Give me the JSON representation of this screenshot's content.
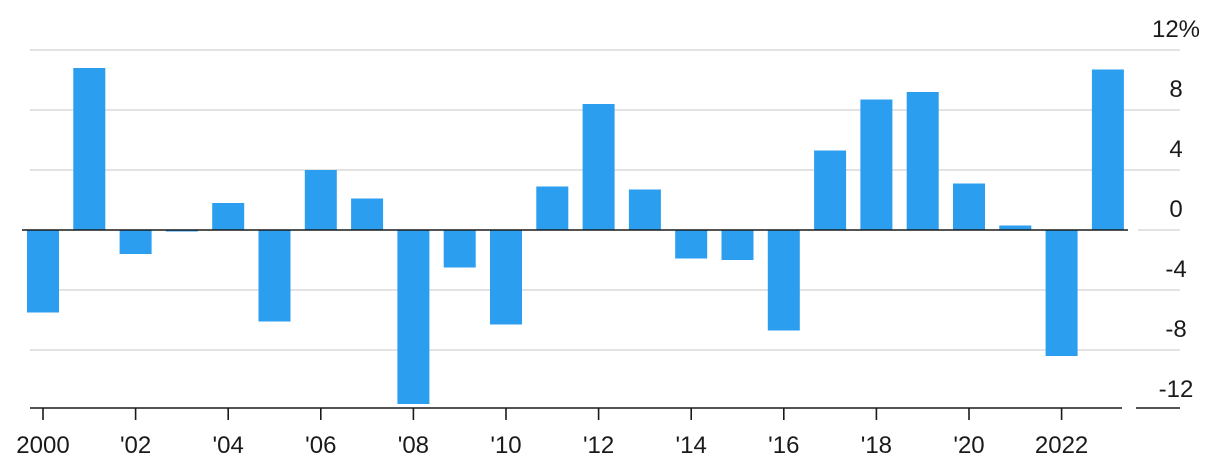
{
  "chart_data": {
    "type": "bar",
    "categories": [
      "2000",
      "2001",
      "2002",
      "2003",
      "2004",
      "2005",
      "2006",
      "2007",
      "2008",
      "2009",
      "2010",
      "2011",
      "2012",
      "2013",
      "2014",
      "2015",
      "2016",
      "2017",
      "2018",
      "2019",
      "2020",
      "2021",
      "2022",
      "2023"
    ],
    "values": [
      -5.5,
      10.8,
      -1.6,
      -0.1,
      1.8,
      -6.1,
      4.0,
      2.1,
      -11.6,
      -2.5,
      -6.3,
      2.9,
      8.4,
      2.7,
      -1.9,
      -2.0,
      -6.7,
      5.3,
      8.7,
      9.2,
      3.1,
      0.3,
      -8.4,
      10.7
    ],
    "bar_color": "#2b9ef0",
    "ylim": [
      -12,
      12
    ],
    "y_ticks": [
      {
        "value": 12,
        "label": "12%"
      },
      {
        "value": 8,
        "label": "8"
      },
      {
        "value": 4,
        "label": "4"
      },
      {
        "value": 0,
        "label": "0"
      },
      {
        "value": -4,
        "label": "-4"
      },
      {
        "value": -8,
        "label": "-8"
      },
      {
        "value": -12,
        "label": "-12"
      }
    ],
    "x_ticks": [
      {
        "index": 0,
        "label": "2000"
      },
      {
        "index": 2,
        "label": "'02"
      },
      {
        "index": 4,
        "label": "'04"
      },
      {
        "index": 6,
        "label": "'06"
      },
      {
        "index": 8,
        "label": "'08"
      },
      {
        "index": 10,
        "label": "'10"
      },
      {
        "index": 12,
        "label": "'12"
      },
      {
        "index": 14,
        "label": "'14"
      },
      {
        "index": 16,
        "label": "'16"
      },
      {
        "index": 18,
        "label": "'18"
      },
      {
        "index": 20,
        "label": "'20"
      },
      {
        "index": 22,
        "label": "2022"
      }
    ],
    "grid": true,
    "legend": "none"
  }
}
